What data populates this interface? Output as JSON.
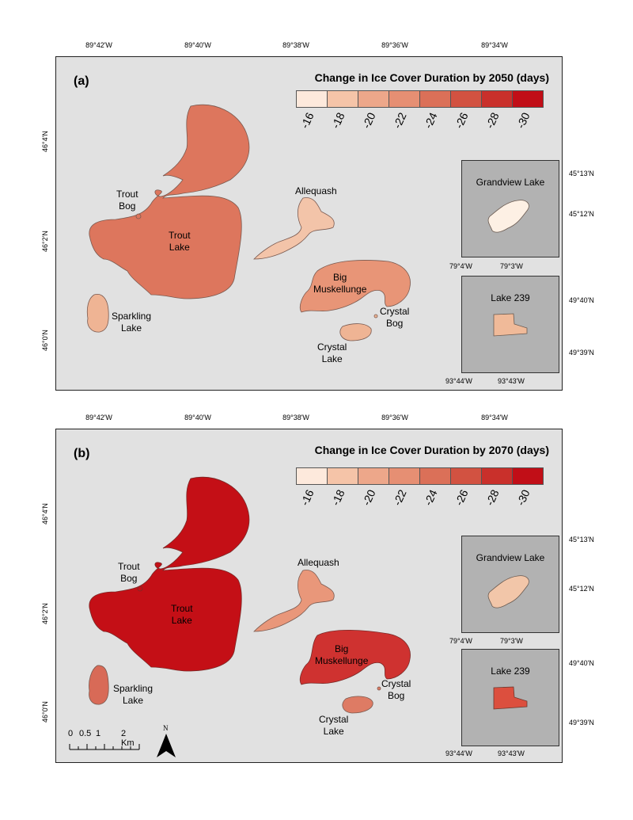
{
  "colors": {
    "background": "#e1e1e1",
    "inset_background": "#b2b2b2",
    "legend": [
      "#fde9dc",
      "#f5c4a8",
      "#eda78a",
      "#e68f73",
      "#db7058",
      "#d25241",
      "#c9302b",
      "#c10e17"
    ],
    "panel_a": {
      "trout": "#dd765d",
      "allequash": "#f3c4a9",
      "big_musk": "#e89577",
      "sparkling": "#efb494",
      "crystal_lake": "#efb494",
      "grandview": "#fdf0e4",
      "lake239": "#f0ba99"
    },
    "panel_b": {
      "trout": "#c40f16",
      "allequash": "#e9977a",
      "big_musk": "#cf3230",
      "sparkling": "#d86a57",
      "crystal_lake": "#de7b64",
      "grandview": "#f2c6a9",
      "lake239": "#dc4f3e"
    }
  },
  "legend": {
    "ticks": [
      "-16",
      "-18",
      "-20",
      "-22",
      "-24",
      "-26",
      "-28",
      "-30"
    ]
  },
  "coords": {
    "top": [
      "89°42'W",
      "89°40'W",
      "89°38'W",
      "89°36'W",
      "89°34'W"
    ],
    "left": [
      "46°4'N",
      "46°2'N",
      "46°0'N"
    ]
  },
  "panels": [
    {
      "label": "(a)",
      "legend_title": "Change in Ice Cover Duration by 2050 (days)",
      "lakes": {
        "trout_bog": "Trout\nBog",
        "trout_lake": "Trout\nLake",
        "allequash": "Allequash",
        "big_musk": "Big\nMuskellunge",
        "crystal_bog": "Crystal\nBog",
        "crystal_lake": "Crystal\nLake",
        "sparkling": "Sparkling\nLake"
      },
      "insets": [
        {
          "title": "Grandview Lake",
          "x_ticks": [
            "79°4'W",
            "79°3'W"
          ],
          "y_ticks": [
            "45°13'N",
            "45°12'N"
          ]
        },
        {
          "title": "Lake 239",
          "x_ticks": [
            "93°44'W",
            "93°43'W"
          ],
          "y_ticks": [
            "49°40'N",
            "49°39'N"
          ]
        }
      ]
    },
    {
      "label": "(b)",
      "legend_title": "Change in Ice Cover Duration by 2070 (days)",
      "lakes": {
        "trout_bog": "Trout\nBog",
        "trout_lake": "Trout\nLake",
        "allequash": "Allequash",
        "big_musk": "Big\nMuskellunge",
        "crystal_bog": "Crystal\nBog",
        "crystal_lake": "Crystal\nLake",
        "sparkling": "Sparkling\nLake"
      },
      "insets": [
        {
          "title": "Grandview Lake",
          "x_ticks": [
            "79°4'W",
            "79°3'W"
          ],
          "y_ticks": [
            "45°13'N",
            "45°12'N"
          ]
        },
        {
          "title": "Lake 239",
          "x_ticks": [
            "93°44'W",
            "93°43'W"
          ],
          "y_ticks": [
            "49°40'N",
            "49°39'N"
          ]
        }
      ]
    }
  ],
  "scalebar": {
    "labels": [
      "0",
      "0.5",
      "1",
      "2 Km"
    ],
    "north": "N"
  }
}
